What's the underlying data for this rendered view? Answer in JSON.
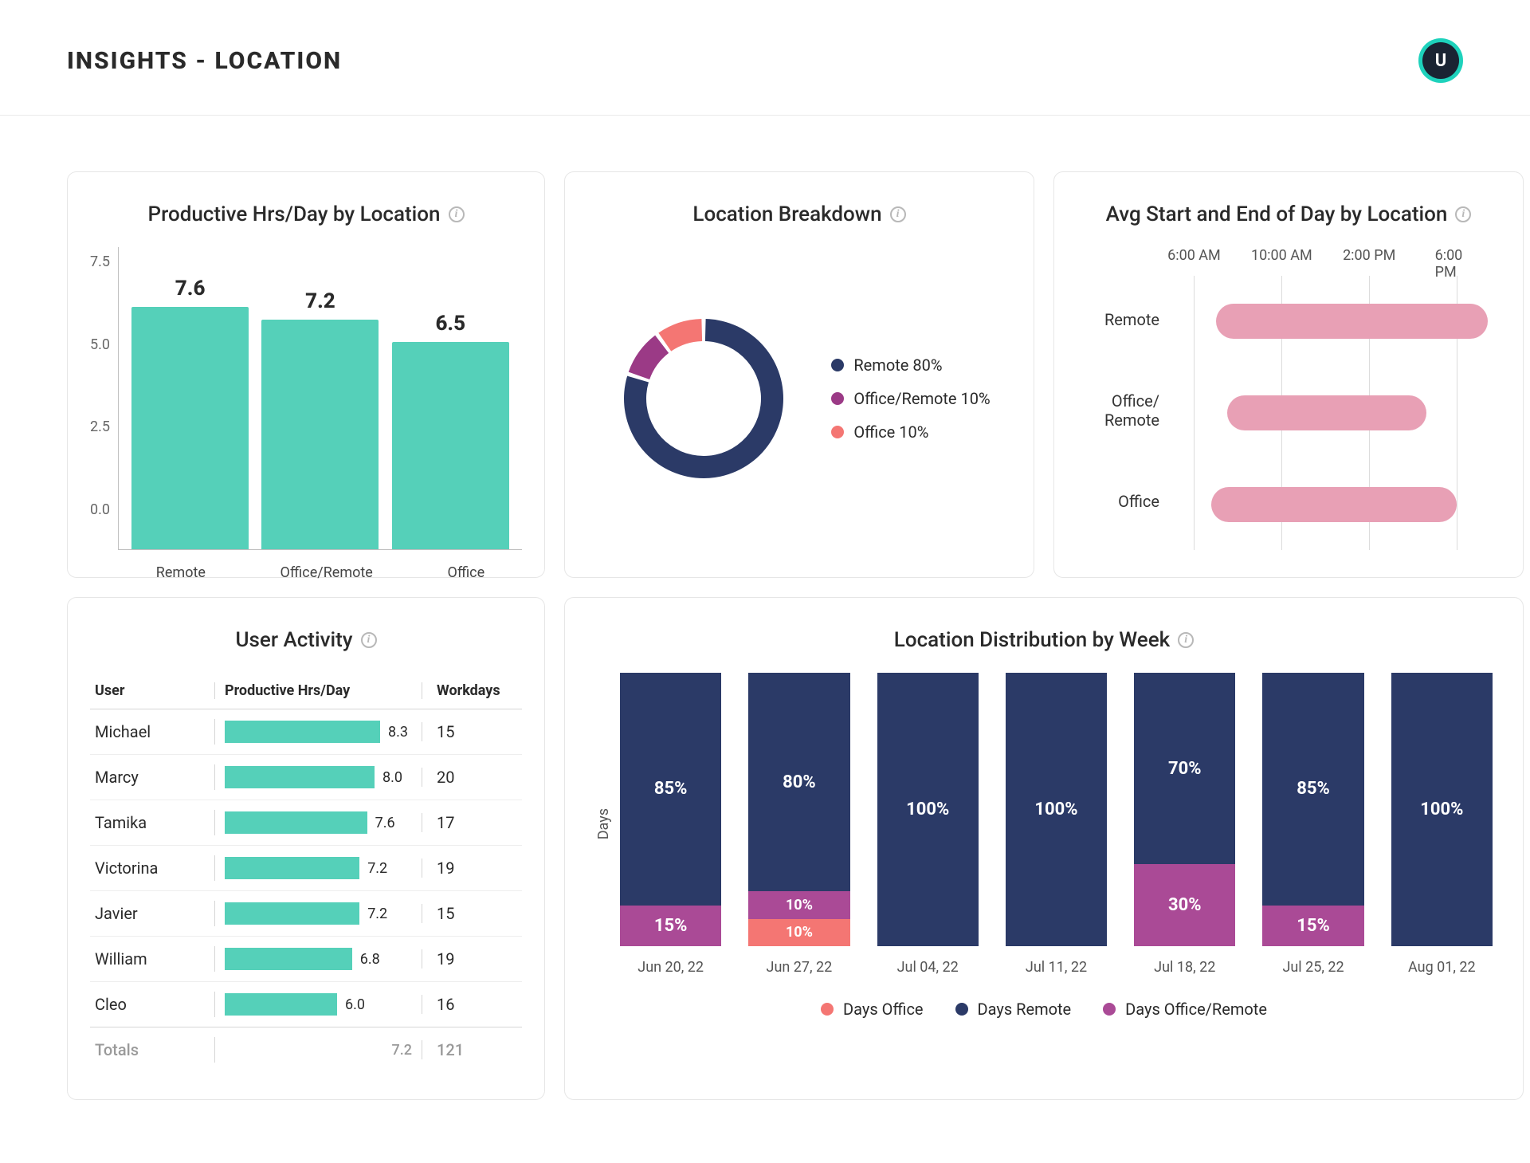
{
  "header": {
    "title": "INSIGHTS - LOCATION",
    "avatar_initial": "U"
  },
  "productive_hours": {
    "title": "Productive Hrs/Day by Location",
    "type": "bar",
    "y_ticks": [
      "7.5",
      "5.0",
      "2.5",
      "0.0"
    ],
    "ylim_max": 8,
    "bar_color": "#55d0b9",
    "value_fontsize": 26,
    "categories": [
      {
        "label": "Remote",
        "value": 7.6
      },
      {
        "label": "Office/Remote",
        "value": 7.2
      },
      {
        "label": "Office",
        "value": 6.5
      }
    ]
  },
  "location_breakdown": {
    "title": "Location Breakdown",
    "type": "donut",
    "gap_deg": 3,
    "thickness": 28,
    "radius": 100,
    "slices": [
      {
        "label": "Remote 80%",
        "pct": 80,
        "color": "#2b3a67"
      },
      {
        "label": "Office/Remote 10%",
        "pct": 10,
        "color": "#9b3a86"
      },
      {
        "label": "Office 10%",
        "pct": 10,
        "color": "#f47673"
      }
    ]
  },
  "avg_start_end": {
    "title": "Avg Start and End of Day by Location",
    "type": "range",
    "bar_color": "#e8a0b5",
    "grid_color": "#dcdcdc",
    "x_min_hour": 5,
    "x_max_hour": 20,
    "x_tick_hours": [
      6,
      10,
      14,
      18
    ],
    "x_tick_labels": [
      "6:00 AM",
      "10:00 AM",
      "2:00 PM",
      "6:00 PM"
    ],
    "rows": [
      {
        "label": "Remote",
        "start_hour": 7.0,
        "end_hour": 19.4
      },
      {
        "label": "Office/\nRemote",
        "start_hour": 7.5,
        "end_hour": 16.6
      },
      {
        "label": "Office",
        "start_hour": 6.8,
        "end_hour": 18.0
      }
    ]
  },
  "user_activity": {
    "title": "User Activity",
    "columns": [
      "User",
      "Productive Hrs/Day",
      "Workdays"
    ],
    "bar_color": "#55d0b9",
    "max_hours": 10,
    "rows": [
      {
        "user": "Michael",
        "hours": 8.3,
        "workdays": 15
      },
      {
        "user": "Marcy",
        "hours": 8.0,
        "workdays": 20
      },
      {
        "user": "Tamika",
        "hours": 7.6,
        "workdays": 17
      },
      {
        "user": "Victorina",
        "hours": 7.2,
        "workdays": 19
      },
      {
        "user": "Javier",
        "hours": 7.2,
        "workdays": 15
      },
      {
        "user": "William",
        "hours": 6.8,
        "workdays": 19
      },
      {
        "user": "Cleo",
        "hours": 6.0,
        "workdays": 16
      }
    ],
    "totals": {
      "label": "Totals",
      "hours": 7.2,
      "workdays": 121
    }
  },
  "weekly_distribution": {
    "title": "Location Distribution by Week",
    "type": "stacked-bar",
    "y_axis_label": "Days",
    "colors": {
      "office": "#f47673",
      "remote": "#2b3a67",
      "office_remote": "#aa4a96"
    },
    "legend": [
      {
        "key": "office",
        "label": "Days Office"
      },
      {
        "key": "remote",
        "label": "Days Remote"
      },
      {
        "key": "office_remote",
        "label": "Days Office/Remote"
      }
    ],
    "weeks": [
      {
        "label": "Jun 20, 22",
        "office": 0,
        "office_remote": 15,
        "remote": 85
      },
      {
        "label": "Jun 27, 22",
        "office": 10,
        "office_remote": 10,
        "remote": 80
      },
      {
        "label": "Jul 04, 22",
        "office": 0,
        "office_remote": 0,
        "remote": 100
      },
      {
        "label": "Jul 11, 22",
        "office": 0,
        "office_remote": 0,
        "remote": 100
      },
      {
        "label": "Jul 18, 22",
        "office": 0,
        "office_remote": 30,
        "remote": 70
      },
      {
        "label": "Jul 25, 22",
        "office": 0,
        "office_remote": 15,
        "remote": 85
      },
      {
        "label": "Aug 01, 22",
        "office": 0,
        "office_remote": 0,
        "remote": 100
      }
    ]
  }
}
